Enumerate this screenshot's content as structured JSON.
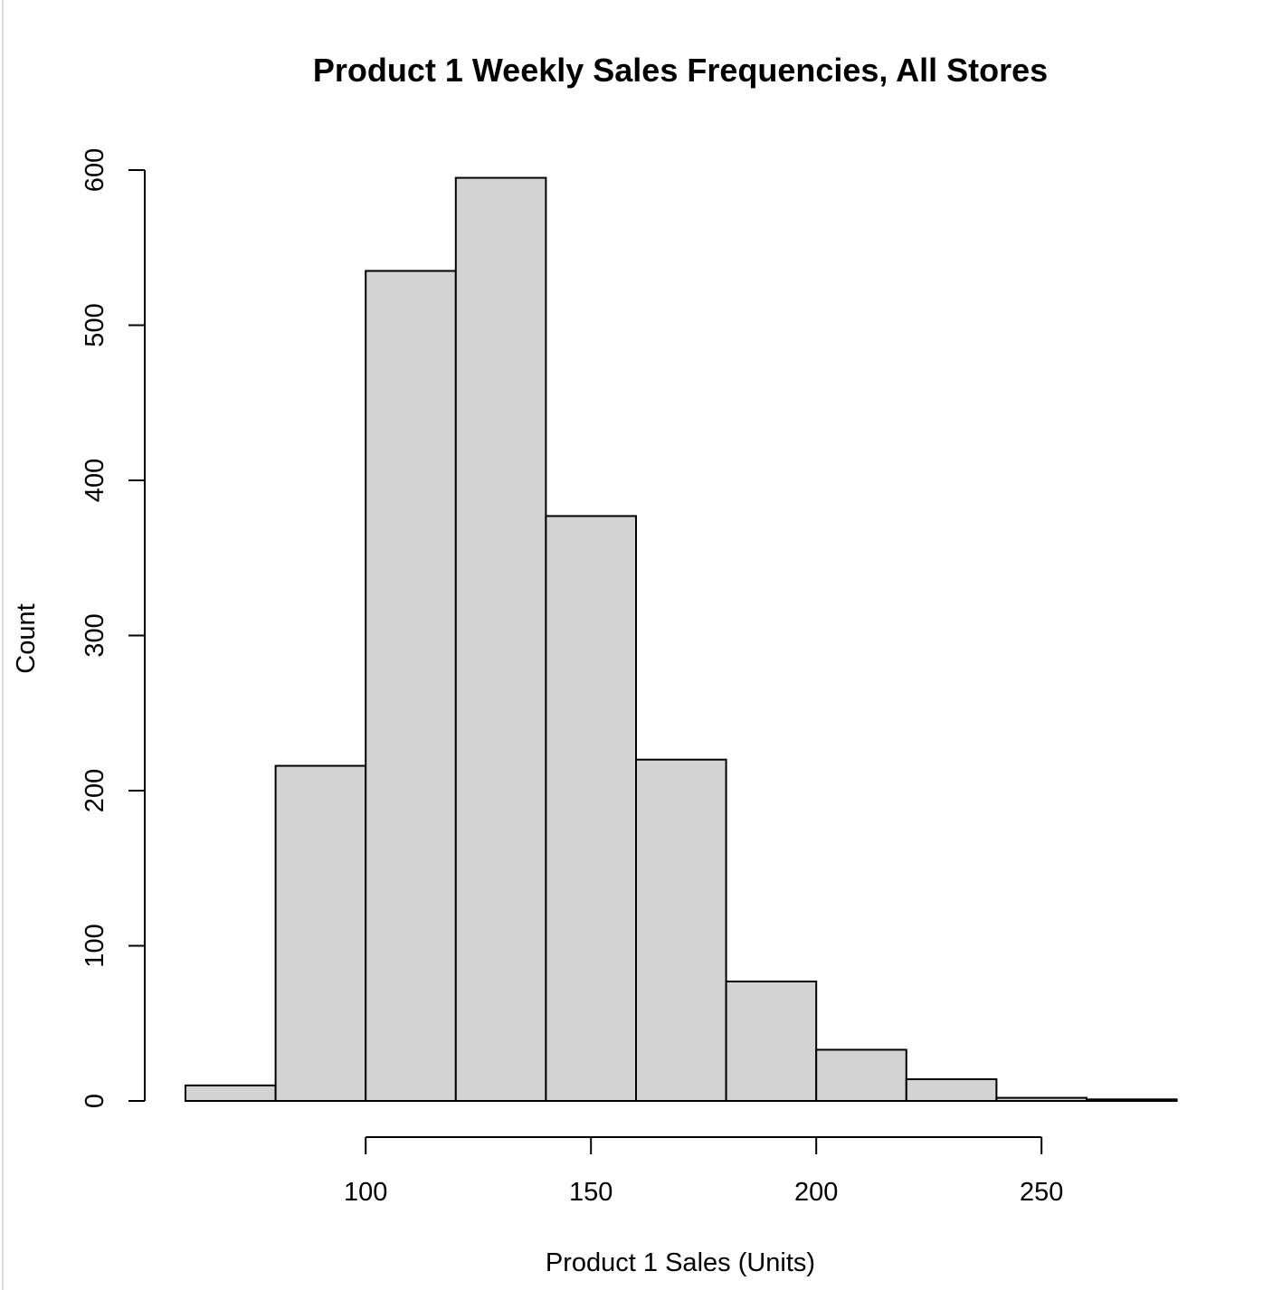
{
  "chart_data": {
    "type": "bar",
    "title": "Product 1 Weekly Sales Frequencies, All Stores",
    "xlabel": "Product 1 Sales (Units)",
    "ylabel": "Count",
    "bin_edges": [
      60,
      80,
      100,
      120,
      140,
      160,
      180,
      200,
      220,
      240,
      260,
      280
    ],
    "counts": [
      10,
      216,
      535,
      595,
      377,
      220,
      77,
      33,
      14,
      2,
      1
    ],
    "xlim": [
      60,
      280
    ],
    "ylim": [
      0,
      600
    ],
    "x_ticks": [
      100,
      150,
      200,
      250
    ],
    "y_ticks": [
      0,
      100,
      200,
      300,
      400,
      500,
      600
    ],
    "grid": false,
    "bar_color": "#d3d3d3",
    "edge_color": "#000000"
  }
}
